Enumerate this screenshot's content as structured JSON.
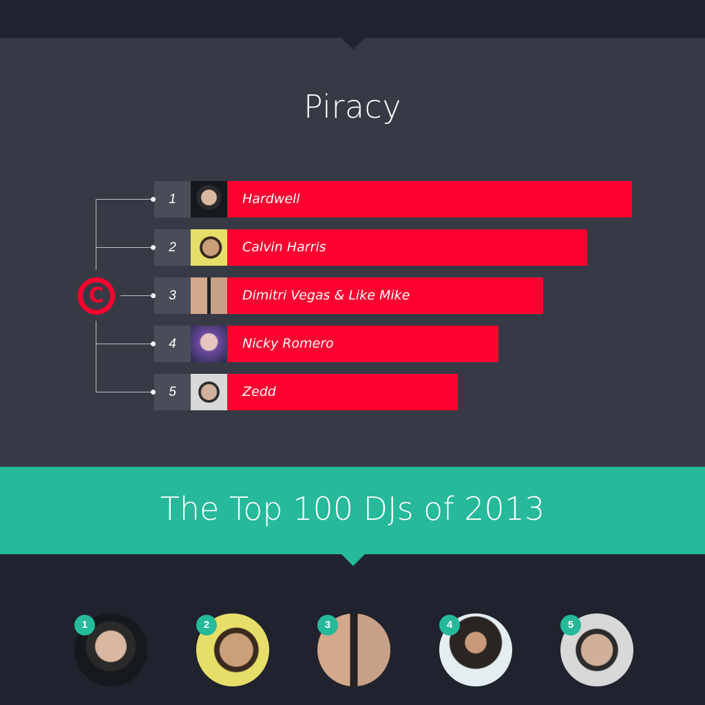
{
  "title": "Piracy",
  "banner": "The Top 100 DJs of 2013",
  "colors": {
    "bar": "#ff0030",
    "accent": "#26b99a",
    "panel": "#373a45",
    "background": "#20232d"
  },
  "icon": "copyright-icon",
  "chart_data": {
    "type": "bar",
    "orientation": "horizontal",
    "title": "Piracy",
    "categories": [
      "Hardwell",
      "Calvin Harris",
      "Dimitri Vegas & Like Mike",
      "Nicky Romero",
      "Zedd"
    ],
    "ranks": [
      "1",
      "2",
      "3",
      "4",
      "5"
    ],
    "values": [
      100,
      89,
      78,
      67,
      57
    ],
    "value_note_relative": true,
    "grid": false
  },
  "top100": [
    {
      "rank": "1"
    },
    {
      "rank": "2"
    },
    {
      "rank": "3"
    },
    {
      "rank": "4"
    },
    {
      "rank": "5"
    }
  ]
}
